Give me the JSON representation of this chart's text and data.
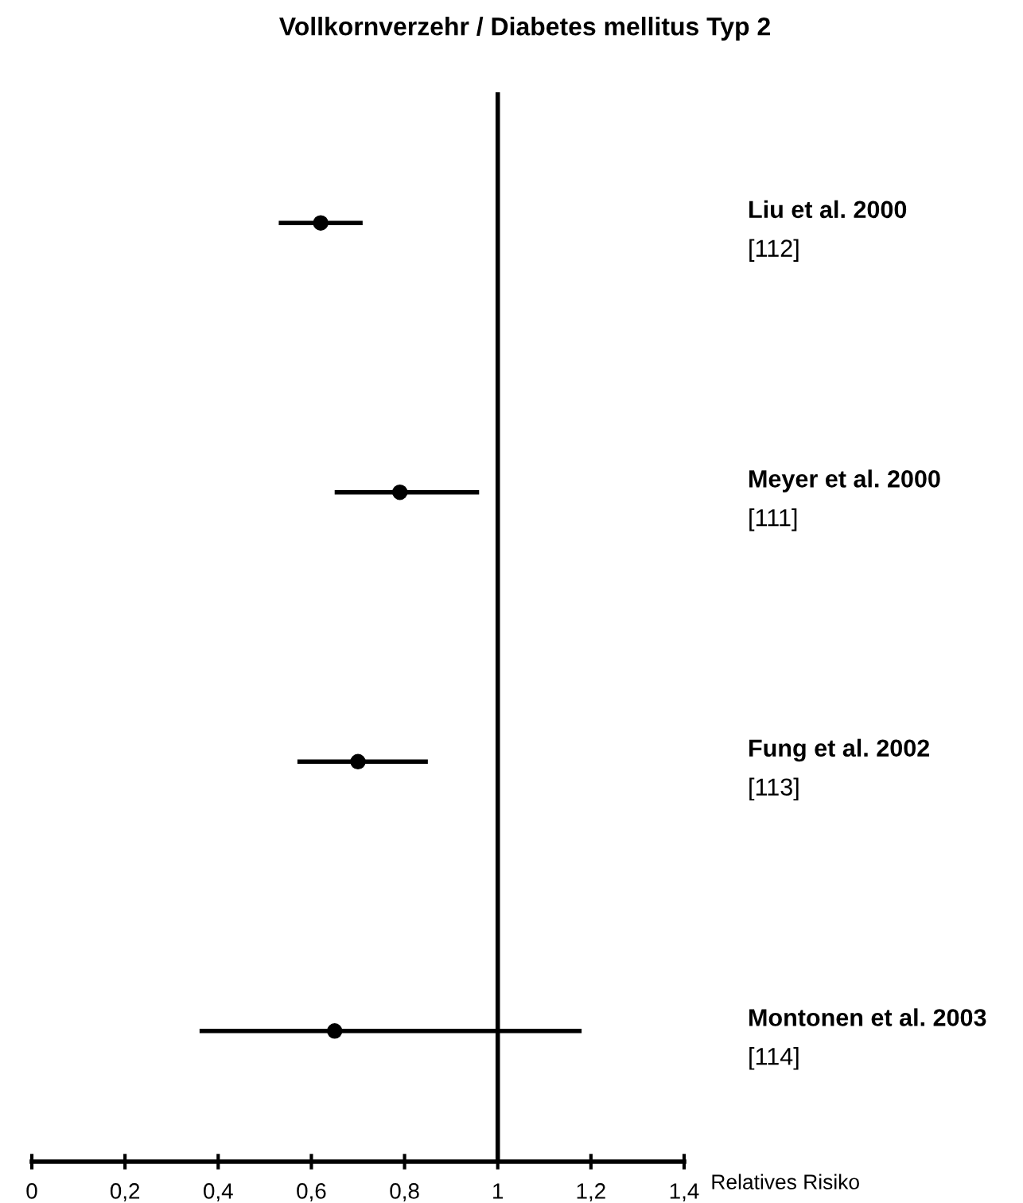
{
  "chart_data": {
    "type": "scatter",
    "orientation": "horizontal",
    "title": "Vollkornverzehr / Diabetes mellitus Typ 2",
    "xlabel": "Relatives Risiko",
    "categories": [
      "Liu et al. 2000",
      "Meyer et al. 2000",
      "Fung et al. 2002",
      "Montonen et al. 2003"
    ],
    "values": [
      0.62,
      0.79,
      0.7,
      0.65
    ],
    "errors": [
      [
        0.53,
        0.71
      ],
      [
        0.65,
        0.96
      ],
      [
        0.57,
        0.85
      ],
      [
        0.36,
        1.18
      ]
    ],
    "color": "#000000",
    "marker": "circle",
    "annotations": [
      "[112]",
      "[111]",
      "[113]",
      "[114]"
    ],
    "ref_lines": [
      {
        "axis": "x",
        "value": 1,
        "color": "#000000"
      }
    ],
    "xlim": [
      0,
      1.4
    ],
    "xticks": [
      0,
      {
        "value": 0.2,
        "label": "0,2"
      },
      {
        "value": 0.4,
        "label": "0,4"
      },
      {
        "value": 0.6,
        "label": "0,6"
      },
      {
        "value": 0.8,
        "label": "0,8"
      },
      1,
      {
        "value": 1.2,
        "label": "1,2"
      },
      {
        "value": 1.4,
        "label": "1,4"
      }
    ],
    "tick_labels": "x",
    "grid": false,
    "legend": false
  }
}
